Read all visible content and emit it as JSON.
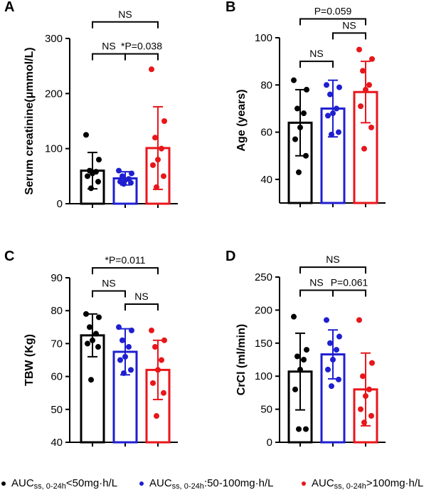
{
  "colors": {
    "g1": "#000000",
    "g2": "#1f1fd1",
    "g3": "#e8161a"
  },
  "groups": [
    {
      "id": "g1",
      "color": "#000000"
    },
    {
      "id": "g2",
      "color": "#1f1fd1"
    },
    {
      "id": "g3",
      "color": "#e8161a"
    }
  ],
  "legend": [
    {
      "prefix": "AUC",
      "sub": "ss, 0-24h",
      "suffix": "<50mg·h/L",
      "color": "#000000"
    },
    {
      "prefix": "AUC",
      "sub": "ss, 0-24h",
      "suffix": ":50-100mg·h/L",
      "color": "#1f1fd1"
    },
    {
      "prefix": "AUC",
      "sub": "ss, 0-24h",
      "suffix": ">100mg·h/L",
      "color": "#e8161a"
    }
  ],
  "chart_data": [
    {
      "panel": "A",
      "type": "bar",
      "ylabel": "Serum creatinine(μmmol/L)",
      "ylim": [
        0,
        300
      ],
      "yticks": [
        0,
        100,
        200,
        300
      ],
      "series": [
        {
          "mean": 60,
          "sd": 33,
          "points": [
            125,
            80,
            60,
            58,
            55,
            50,
            40,
            28
          ]
        },
        {
          "mean": 46,
          "sd": 12,
          "points": [
            60,
            55,
            50,
            45,
            43,
            40,
            38,
            36
          ]
        },
        {
          "mean": 101,
          "sd": 75,
          "points": [
            244,
            150,
            120,
            100,
            80,
            70,
            50,
            30
          ]
        }
      ],
      "annotations": [
        {
          "from": 0,
          "to": 2,
          "level": 330,
          "text": "NS"
        },
        {
          "from": 0,
          "to": 1,
          "level": 272,
          "text": "NS"
        },
        {
          "from": 1,
          "to": 2,
          "level": 272,
          "text": "*P=0.038"
        }
      ]
    },
    {
      "panel": "B",
      "type": "bar",
      "ylabel": "Age (years)",
      "ylim": [
        30,
        100
      ],
      "yticks": [
        40,
        60,
        80,
        100
      ],
      "series": [
        {
          "mean": 64,
          "sd": 14,
          "points": [
            82,
            78,
            70,
            68,
            62,
            57,
            50,
            43
          ]
        },
        {
          "mean": 70,
          "sd": 12,
          "points": [
            80,
            79,
            76,
            70,
            68,
            67,
            60,
            59
          ]
        },
        {
          "mean": 77,
          "sd": 13,
          "points": [
            95,
            91,
            86,
            80,
            78,
            71,
            62,
            53
          ]
        }
      ],
      "annotations": [
        {
          "from": 0,
          "to": 2,
          "level": 108,
          "text": "P=0.059"
        },
        {
          "from": 1,
          "to": 2,
          "level": 102,
          "text": "NS"
        },
        {
          "from": 0,
          "to": 1,
          "level": 90,
          "text": "NS"
        }
      ]
    },
    {
      "panel": "C",
      "type": "bar",
      "ylabel": "TBW (Kg)",
      "ylim": [
        40,
        90
      ],
      "yticks": [
        40,
        50,
        60,
        70,
        80,
        90
      ],
      "series": [
        {
          "mean": 72.5,
          "sd": 6.5,
          "points": [
            79,
            78,
            75,
            73,
            71,
            70,
            69,
            59
          ]
        },
        {
          "mean": 67.5,
          "sd": 7,
          "points": [
            75,
            74,
            71,
            69,
            66,
            65,
            62,
            61
          ]
        },
        {
          "mean": 62,
          "sd": 9,
          "points": [
            74,
            71,
            69,
            65,
            62,
            58,
            55,
            48
          ]
        }
      ],
      "annotations": [
        {
          "from": 0,
          "to": 2,
          "level": 93,
          "text": "*P=0.011"
        },
        {
          "from": 0,
          "to": 1,
          "level": 86,
          "text": "NS"
        },
        {
          "from": 1,
          "to": 2,
          "level": 82,
          "text": "NS"
        }
      ]
    },
    {
      "panel": "D",
      "type": "bar",
      "ylabel": "CrCl (ml/min)",
      "ylim": [
        0,
        250
      ],
      "yticks": [
        0,
        50,
        100,
        150,
        200,
        250
      ],
      "series": [
        {
          "mean": 107,
          "sd": 58,
          "points": [
            190,
            140,
            130,
            125,
            110,
            80,
            20,
            20
          ]
        },
        {
          "mean": 133,
          "sd": 37,
          "points": [
            185,
            160,
            150,
            140,
            125,
            110,
            95,
            85
          ]
        },
        {
          "mean": 80,
          "sd": 55,
          "points": [
            185,
            120,
            100,
            80,
            70,
            50,
            40,
            30
          ]
        }
      ],
      "annotations": [
        {
          "from": 0,
          "to": 2,
          "level": 265,
          "text": "NS"
        },
        {
          "from": 0,
          "to": 1,
          "level": 230,
          "text": "NS"
        },
        {
          "from": 1,
          "to": 2,
          "level": 230,
          "text": "P=0.061"
        }
      ]
    }
  ]
}
